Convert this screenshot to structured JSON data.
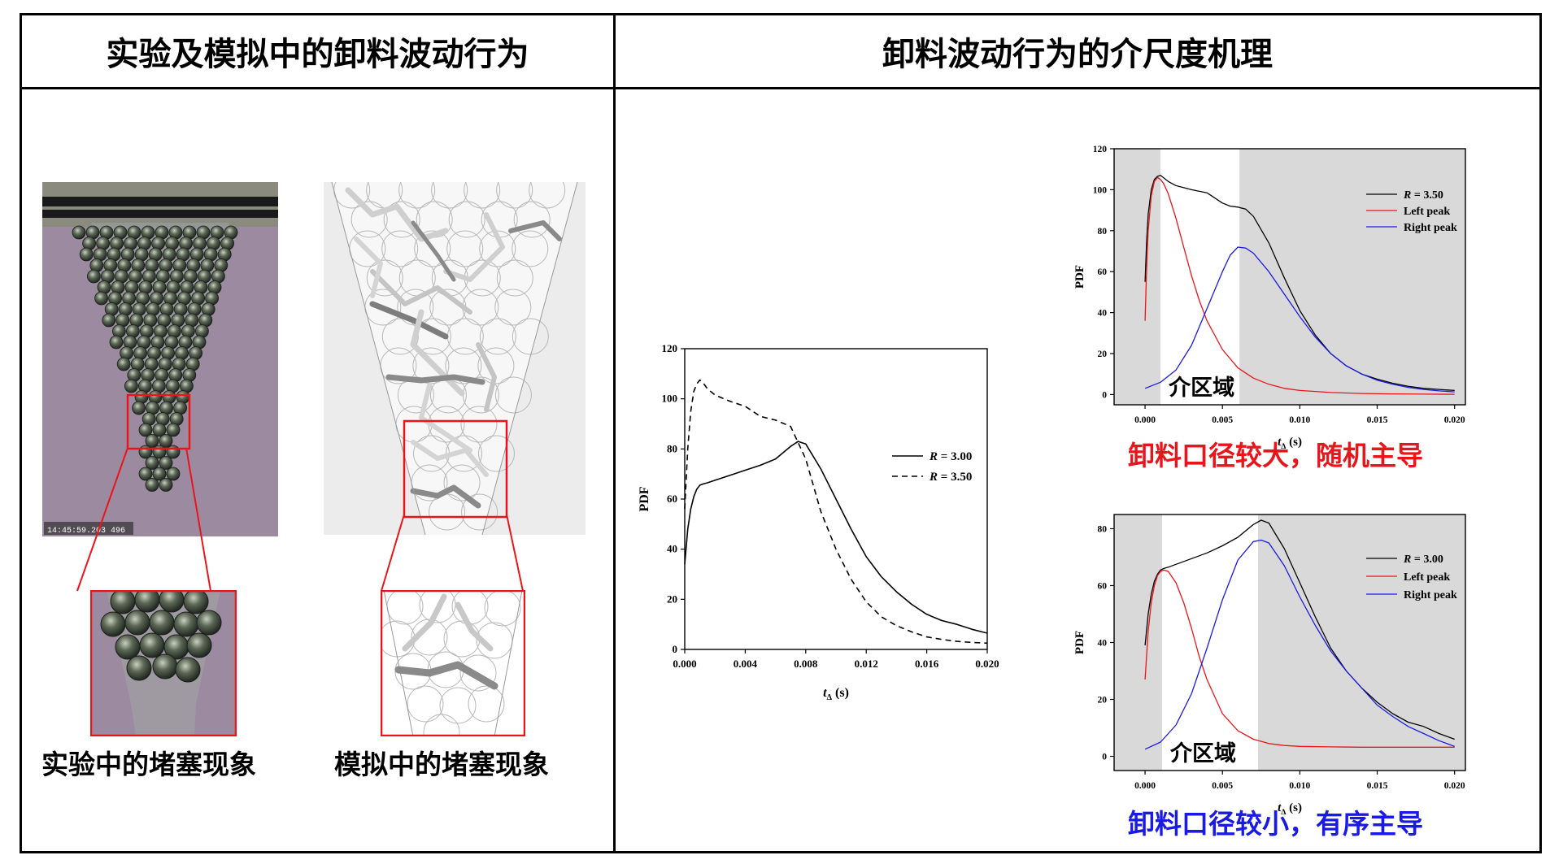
{
  "headers": {
    "left": "实验及模拟中的卸料波动行为",
    "right": "卸料波动行为的介尺度机理"
  },
  "left_panel": {
    "timestamp": "14:45:59.203 496",
    "caption_experiment": "实验中的堵塞现象",
    "caption_simulation": "模拟中的堵塞现象",
    "highlight_color": "#e8161b"
  },
  "charts": [
    {
      "id": "main",
      "type": "line",
      "xlabel": "t",
      "xlabel_sub": "Δ",
      "xlabel_unit": " (s)",
      "ylabel": "PDF",
      "xlim": [
        0,
        0.02
      ],
      "ylim": [
        0,
        120
      ],
      "xticks": [
        "0.000",
        "0.004",
        "0.008",
        "0.012",
        "0.016",
        "0.020"
      ],
      "yticks": [
        "0",
        "20",
        "40",
        "60",
        "80",
        "100",
        "120"
      ],
      "series": [
        {
          "name_prefix": "R",
          "name": " = 3.00",
          "color": "#000000",
          "dash": "",
          "x": [
            0,
            0.0002,
            0.0004,
            0.0006,
            0.0008,
            0.001,
            0.0012,
            0.0015,
            0.002,
            0.003,
            0.004,
            0.005,
            0.006,
            0.007,
            0.0075,
            0.008,
            0.009,
            0.01,
            0.011,
            0.012,
            0.013,
            0.014,
            0.015,
            0.016,
            0.017,
            0.018,
            0.019,
            0.02
          ],
          "y": [
            34,
            48,
            56,
            61,
            64,
            65.5,
            66,
            66.5,
            67.5,
            69.5,
            71.5,
            73.5,
            76,
            81,
            83,
            82,
            72,
            60,
            48,
            37,
            29,
            23,
            18,
            14,
            11.5,
            10,
            8,
            6.5
          ]
        },
        {
          "name_prefix": "R",
          "name": " = 3.50",
          "color": "#000000",
          "dash": "7,5",
          "x": [
            0,
            0.0002,
            0.0004,
            0.0006,
            0.0008,
            0.001,
            0.0012,
            0.0015,
            0.002,
            0.003,
            0.004,
            0.005,
            0.006,
            0.007,
            0.008,
            0.009,
            0.01,
            0.011,
            0.012,
            0.013,
            0.014,
            0.015,
            0.016,
            0.017,
            0.018,
            0.019,
            0.02
          ],
          "y": [
            56,
            80,
            95,
            103,
            106,
            107.5,
            106.5,
            104,
            101.5,
            99,
            97,
            93,
            91.5,
            89,
            76,
            55,
            40,
            28,
            19,
            13,
            9.5,
            7,
            5,
            4,
            3.2,
            2.8,
            2.5
          ]
        }
      ]
    },
    {
      "id": "top",
      "type": "line",
      "xlabel": "t",
      "xlabel_sub": "Δ",
      "xlabel_unit": " (s)",
      "ylabel": "PDF",
      "xlim": [
        -0.002,
        0.0207
      ],
      "ylim": [
        -5,
        120
      ],
      "xticks": [
        "0.000",
        "0.005",
        "0.010",
        "0.015",
        "0.020"
      ],
      "xtick_values": [
        0,
        0.005,
        0.01,
        0.015,
        0.02
      ],
      "yticks": [
        "0",
        "20",
        "40",
        "60",
        "80",
        "100",
        "120"
      ],
      "shade_color": "#d9d9d9",
      "white_band": [
        0.001,
        0.0061
      ],
      "zone_label": "介区域",
      "caption": "卸料口径较大，随机主导",
      "series": [
        {
          "name_prefix": "R",
          "name": " = 3.50",
          "color": "#000000",
          "x": [
            0,
            0.0001,
            0.0002,
            0.0004,
            0.0006,
            0.0008,
            0.001,
            0.0015,
            0.002,
            0.003,
            0.004,
            0.005,
            0.0055,
            0.006,
            0.0065,
            0.007,
            0.008,
            0.009,
            0.01,
            0.011,
            0.012,
            0.013,
            0.014,
            0.015,
            0.016,
            0.017,
            0.018,
            0.019,
            0.02
          ],
          "y": [
            55,
            75,
            88,
            100,
            105,
            106.5,
            107,
            104,
            102,
            100,
            98.5,
            93.5,
            92,
            91.5,
            90.5,
            87,
            74,
            57,
            41,
            29,
            20,
            14,
            10,
            7.5,
            5.5,
            4,
            3,
            2.5,
            2
          ]
        },
        {
          "name": "Left peak",
          "color": "#e8161b",
          "x": [
            0,
            0.0001,
            0.0002,
            0.0004,
            0.0006,
            0.0008,
            0.001,
            0.0012,
            0.0015,
            0.002,
            0.0025,
            0.003,
            0.0035,
            0.004,
            0.005,
            0.006,
            0.007,
            0.008,
            0.009,
            0.01,
            0.012,
            0.014,
            0.016,
            0.018,
            0.02
          ],
          "y": [
            36,
            62,
            80,
            97,
            104,
            106,
            105,
            103,
            98,
            86,
            72,
            58,
            46,
            36,
            22,
            13,
            8,
            5,
            3,
            2,
            1,
            0.5,
            0.3,
            0.2,
            0.1
          ]
        },
        {
          "name": "Right peak",
          "color": "#1a1ae6",
          "x": [
            0,
            0.001,
            0.002,
            0.003,
            0.004,
            0.005,
            0.0055,
            0.006,
            0.0065,
            0.007,
            0.008,
            0.009,
            0.01,
            0.011,
            0.012,
            0.013,
            0.014,
            0.015,
            0.016,
            0.017,
            0.018,
            0.019,
            0.02
          ],
          "y": [
            3,
            6,
            12,
            24,
            42,
            60,
            68,
            72,
            71.5,
            69,
            60,
            49,
            38,
            28,
            20,
            14,
            10,
            7,
            5,
            3.5,
            2.5,
            1.8,
            1.3
          ]
        }
      ]
    },
    {
      "id": "bottom",
      "type": "line",
      "xlabel": "t",
      "xlabel_sub": "Δ",
      "xlabel_unit": " (s)",
      "ylabel": "PDF",
      "xlim": [
        -0.002,
        0.0207
      ],
      "ylim": [
        -5,
        85
      ],
      "xticks": [
        "0.000",
        "0.005",
        "0.010",
        "0.015",
        "0.020"
      ],
      "xtick_values": [
        0,
        0.005,
        0.01,
        0.015,
        0.02
      ],
      "yticks": [
        "0",
        "20",
        "40",
        "60",
        "80"
      ],
      "shade_color": "#d9d9d9",
      "white_band": [
        0.0011,
        0.0073
      ],
      "zone_label": "介区域",
      "caption": "卸料口径较小，有序主导",
      "series": [
        {
          "name_prefix": "R",
          "name": " = 3.00",
          "color": "#000000",
          "x": [
            0,
            0.0002,
            0.0004,
            0.0006,
            0.0008,
            0.001,
            0.0012,
            0.0015,
            0.002,
            0.003,
            0.004,
            0.005,
            0.006,
            0.007,
            0.0075,
            0.008,
            0.009,
            0.01,
            0.011,
            0.012,
            0.013,
            0.014,
            0.015,
            0.016,
            0.017,
            0.018,
            0.019,
            0.02
          ],
          "y": [
            39,
            50,
            57,
            61.5,
            64,
            65.5,
            66,
            66.5,
            67.5,
            69.5,
            71.5,
            74,
            77,
            81.5,
            83,
            82,
            73,
            61,
            49,
            38,
            30,
            24,
            19,
            15,
            12,
            10.5,
            8,
            6
          ]
        },
        {
          "name": "Left peak",
          "color": "#e8161b",
          "x": [
            0,
            0.0002,
            0.0004,
            0.0006,
            0.0008,
            0.001,
            0.0012,
            0.0015,
            0.002,
            0.0025,
            0.003,
            0.0035,
            0.004,
            0.005,
            0.006,
            0.007,
            0.008,
            0.009,
            0.01,
            0.012,
            0.014,
            0.016,
            0.018,
            0.02
          ],
          "y": [
            27,
            44,
            54,
            60,
            63.5,
            65,
            65.5,
            65,
            61,
            54,
            45,
            35,
            27,
            15,
            9,
            6,
            4.5,
            3.8,
            3.5,
            3.3,
            3.2,
            3.2,
            3.2,
            3.2
          ]
        },
        {
          "name": "Right peak",
          "color": "#1a1ae6",
          "x": [
            0,
            0.001,
            0.002,
            0.003,
            0.004,
            0.005,
            0.006,
            0.007,
            0.0075,
            0.008,
            0.009,
            0.01,
            0.011,
            0.012,
            0.013,
            0.014,
            0.015,
            0.016,
            0.017,
            0.018,
            0.019,
            0.02
          ],
          "y": [
            2.5,
            5,
            11,
            22,
            38,
            55,
            69,
            75.5,
            76,
            75,
            67,
            56,
            46,
            37,
            30,
            24,
            18,
            14,
            10.5,
            8,
            5.5,
            3.5
          ]
        }
      ]
    }
  ]
}
